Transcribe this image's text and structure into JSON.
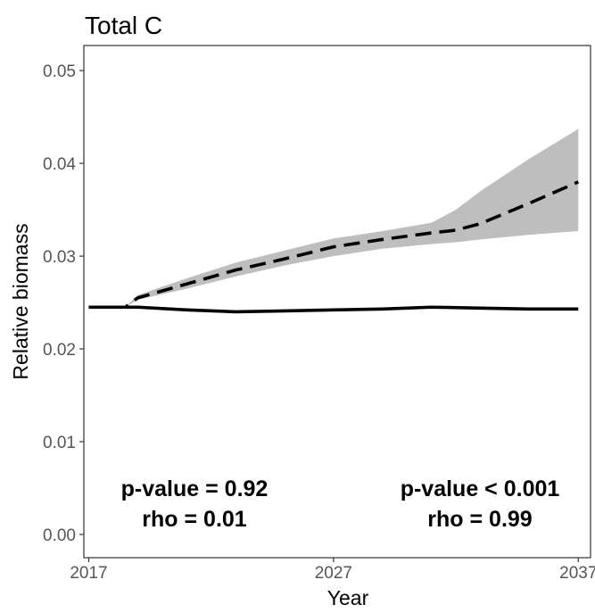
{
  "chart_data": {
    "type": "line",
    "title": "Total C",
    "xlabel": "Year",
    "ylabel": "Relative biomass",
    "xlim": [
      2016.8,
      2037.5
    ],
    "ylim": [
      -0.0025,
      0.0527
    ],
    "x_ticks": [
      2017,
      2027,
      2037
    ],
    "y_ticks": [
      0.0,
      0.01,
      0.02,
      0.03,
      0.04,
      0.05
    ],
    "y_tick_labels": [
      "0.00",
      "0.01",
      "0.02",
      "0.03",
      "0.04",
      "0.05"
    ],
    "grid": false,
    "legend": "none",
    "series": [
      {
        "line_style": "solid",
        "x": [
          2017,
          2019,
          2021,
          2023,
          2025,
          2027,
          2029,
          2031,
          2033,
          2035,
          2037
        ],
        "values": [
          0.0245,
          0.0245,
          0.0242,
          0.024,
          0.0241,
          0.0242,
          0.0243,
          0.0245,
          0.0244,
          0.0243,
          0.0243
        ]
      },
      {
        "line_style": "dashed",
        "x": [
          2017,
          2018.5,
          2019,
          2021,
          2023,
          2025,
          2027,
          2029,
          2031,
          2032,
          2033,
          2035,
          2037
        ],
        "values": [
          0.0245,
          0.0245,
          0.0255,
          0.027,
          0.0285,
          0.0297,
          0.031,
          0.0318,
          0.0325,
          0.0328,
          0.0335,
          0.0357,
          0.038
        ],
        "band_lower": [
          0.0245,
          0.0245,
          0.0253,
          0.0265,
          0.0278,
          0.029,
          0.03,
          0.0308,
          0.0313,
          0.0315,
          0.0318,
          0.0323,
          0.0327
        ],
        "band_upper": [
          0.0245,
          0.0245,
          0.0258,
          0.0276,
          0.0293,
          0.0306,
          0.0319,
          0.0327,
          0.0336,
          0.035,
          0.037,
          0.0405,
          0.0437
        ]
      }
    ],
    "annotations": [
      {
        "lines": [
          "p-value = 0.92",
          "rho = 0.01"
        ],
        "position": "bottom-left"
      },
      {
        "lines": [
          "p-value < 0.001",
          "rho = 0.99"
        ],
        "position": "bottom-right"
      }
    ],
    "colors": {
      "band": "#bebebe",
      "line": "#000000",
      "axis": "#333333",
      "tick_text": "#555555"
    }
  }
}
